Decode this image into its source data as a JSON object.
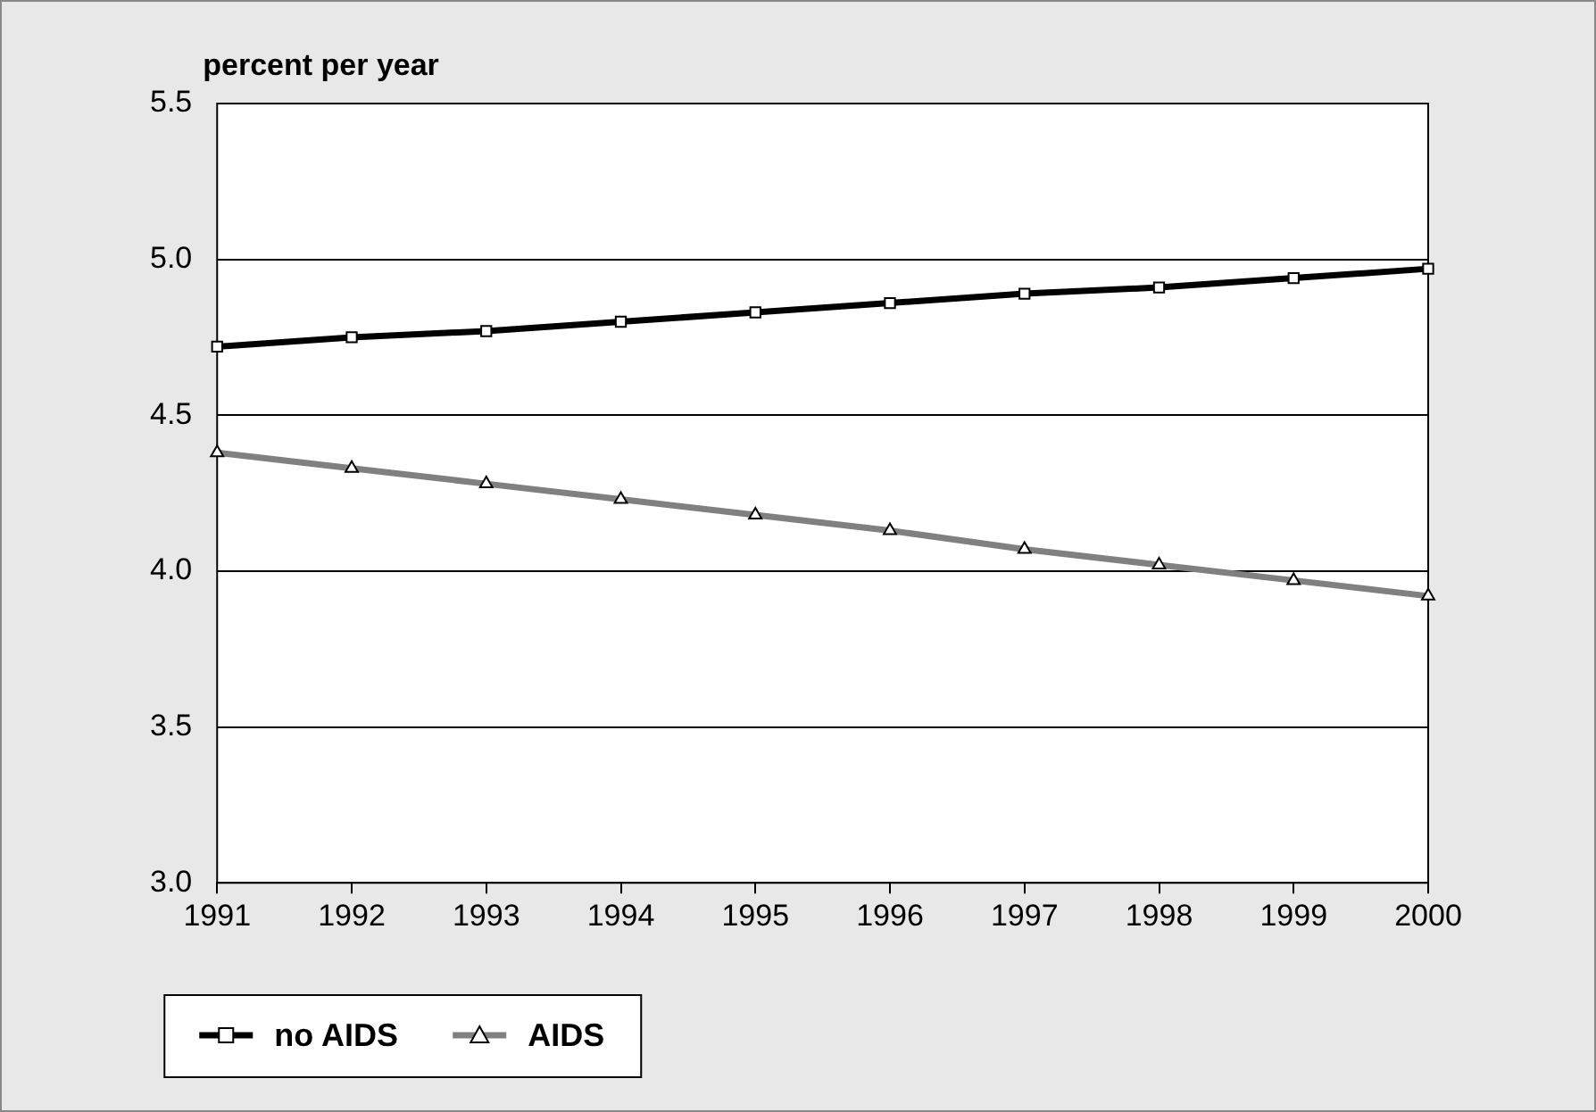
{
  "chart_data": {
    "type": "line",
    "ylabel": "percent per year",
    "categories": [
      "1991",
      "1992",
      "1993",
      "1994",
      "1995",
      "1996",
      "1997",
      "1998",
      "1999",
      "2000"
    ],
    "series": [
      {
        "name": "no AIDS",
        "color": "#000000",
        "marker": "square",
        "values": [
          4.72,
          4.75,
          4.77,
          4.8,
          4.83,
          4.86,
          4.89,
          4.91,
          4.94,
          4.97
        ]
      },
      {
        "name": "AIDS",
        "color": "#808080",
        "marker": "triangle",
        "values": [
          4.38,
          4.33,
          4.28,
          4.23,
          4.18,
          4.13,
          4.07,
          4.02,
          3.97,
          3.92
        ]
      }
    ],
    "ylim": [
      3.0,
      5.5
    ],
    "yticks": [
      {
        "value": 3,
        "label": "3.0"
      },
      {
        "value": 3.5,
        "label": "3.5"
      },
      {
        "value": 4,
        "label": "4.0"
      },
      {
        "value": 4.5,
        "label": "4.5"
      },
      {
        "value": 5,
        "label": "5.0"
      },
      {
        "value": 5.5,
        "label": "5.5"
      }
    ],
    "grid": "y",
    "legend": "bottom left",
    "line_style": "solid"
  }
}
